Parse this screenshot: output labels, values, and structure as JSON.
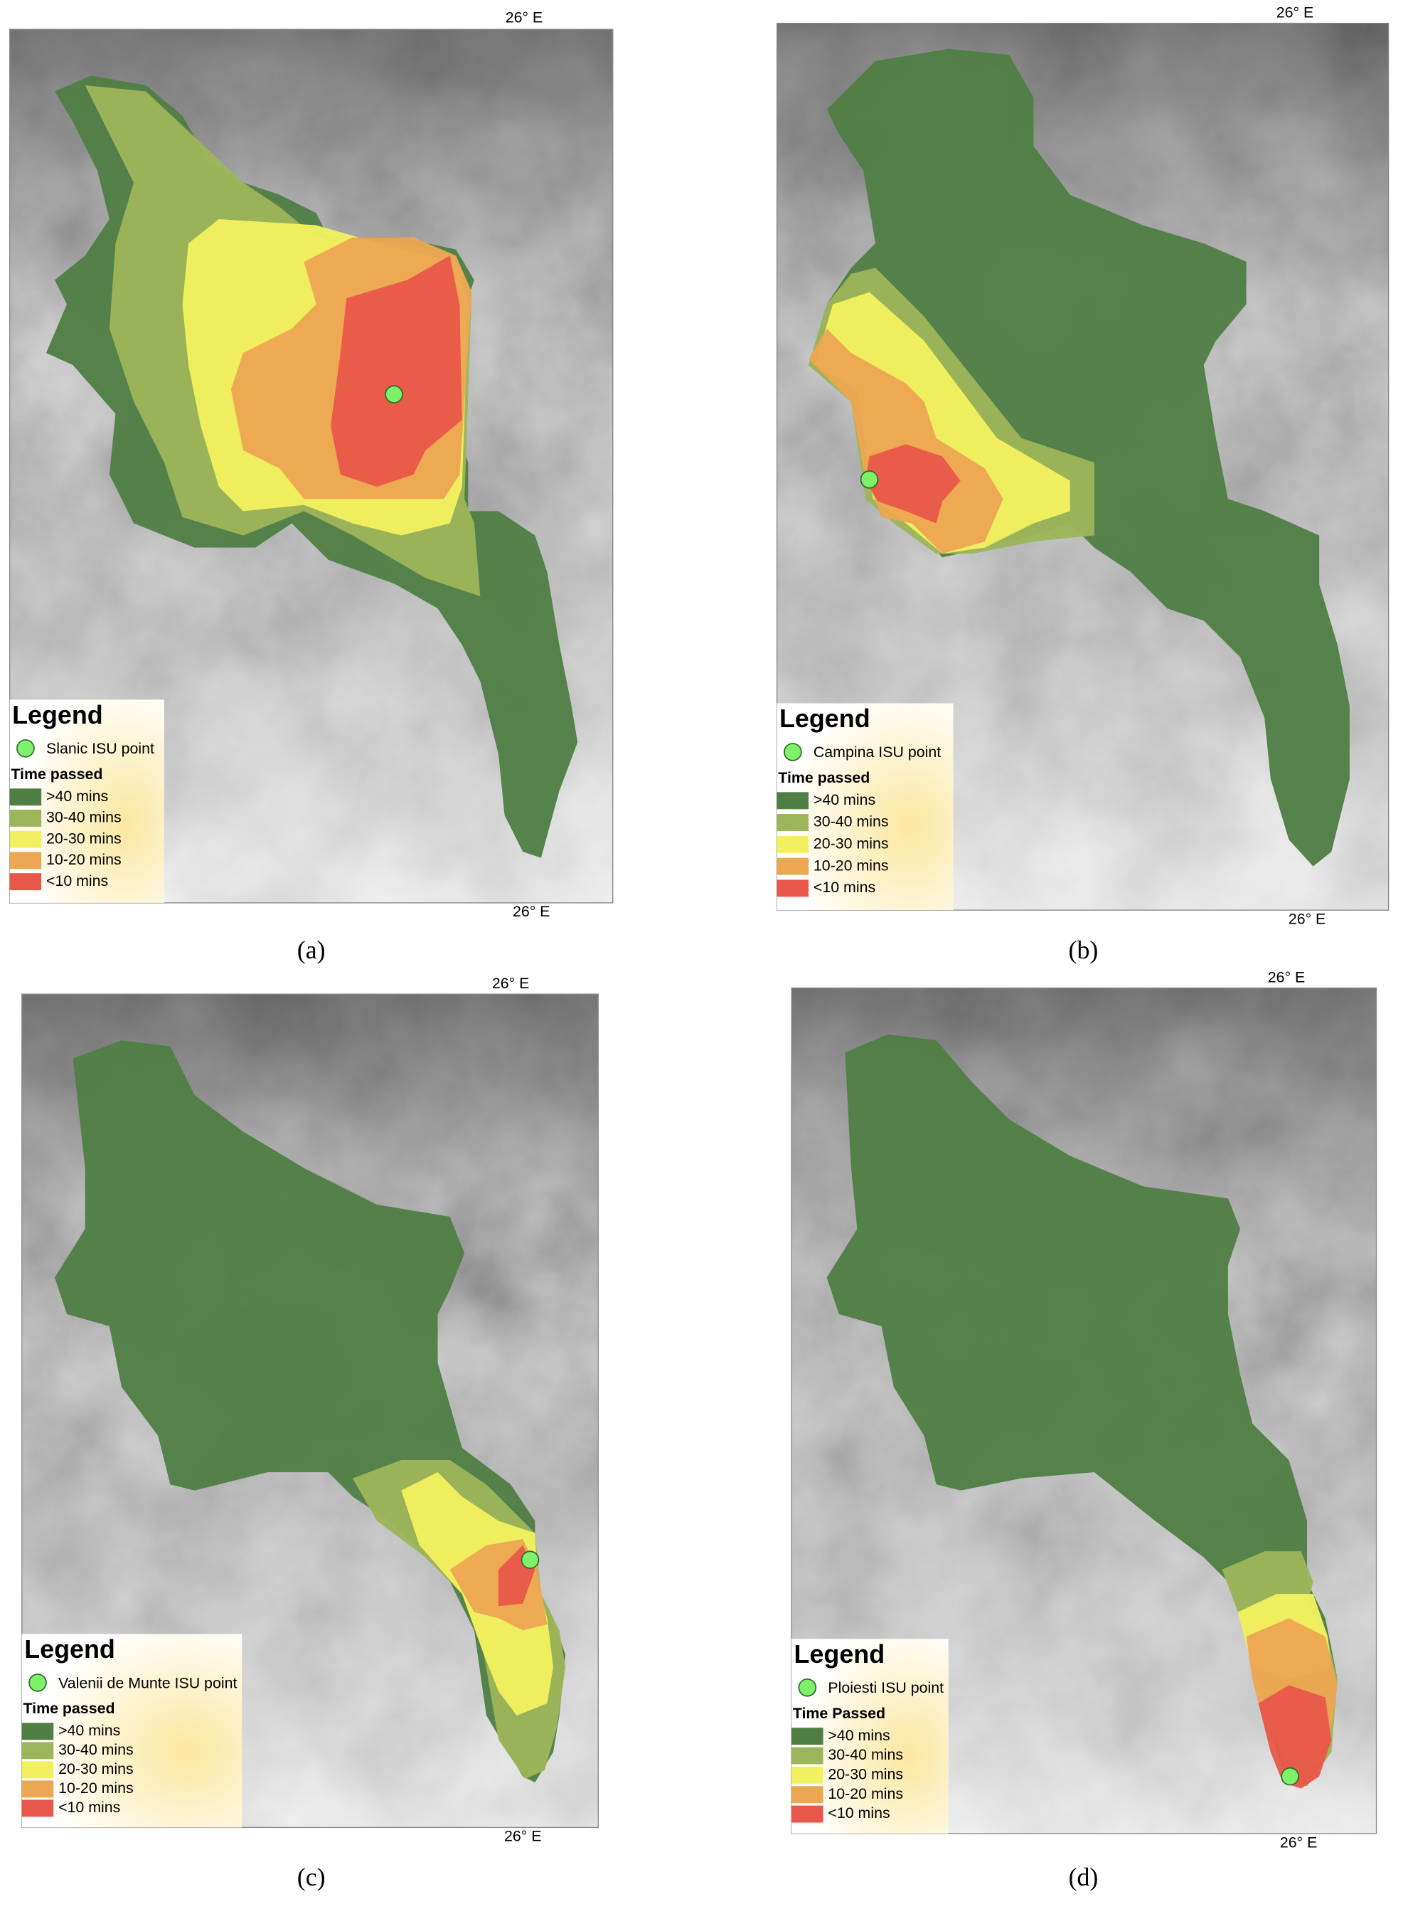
{
  "panels": [
    {
      "caption": "(a)",
      "lon_top": "26° E",
      "lon_bottom": "26° E",
      "legend": {
        "title": "Legend",
        "point": "Slanic ISU point",
        "subtitle": "Time passed",
        "classes": [
          ">40 mins",
          "30-40 mins",
          "20-30 mins",
          "10-20 mins",
          "<10 mins"
        ]
      }
    },
    {
      "caption": "(b)",
      "lon_top": "26° E",
      "lon_bottom": "26° E",
      "legend": {
        "title": "Legend",
        "point": "Campina ISU point",
        "subtitle": "Time passed",
        "classes": [
          ">40 mins",
          "30-40 mins",
          "20-30 mins",
          "10-20 mins",
          "<10 mins"
        ]
      }
    },
    {
      "caption": "(c)",
      "lon_top": "26° E",
      "lon_bottom": "26° E",
      "legend": {
        "title": "Legend",
        "point": "Valenii de Munte ISU point",
        "subtitle": "Time passed",
        "classes": [
          ">40 mins",
          "30-40 mins",
          "20-30 mins",
          "10-20 mins",
          "<10 mins"
        ]
      }
    },
    {
      "caption": "(d)",
      "lon_top": "26° E",
      "lon_bottom": "26° E",
      "legend": {
        "title": "Legend",
        "point": "Ploiesti ISU point",
        "subtitle": "Time Passed",
        "classes": [
          ">40 mins",
          "30-40 mins",
          "20-30 mins",
          "10-20 mins",
          "<10 mins"
        ]
      }
    }
  ]
}
